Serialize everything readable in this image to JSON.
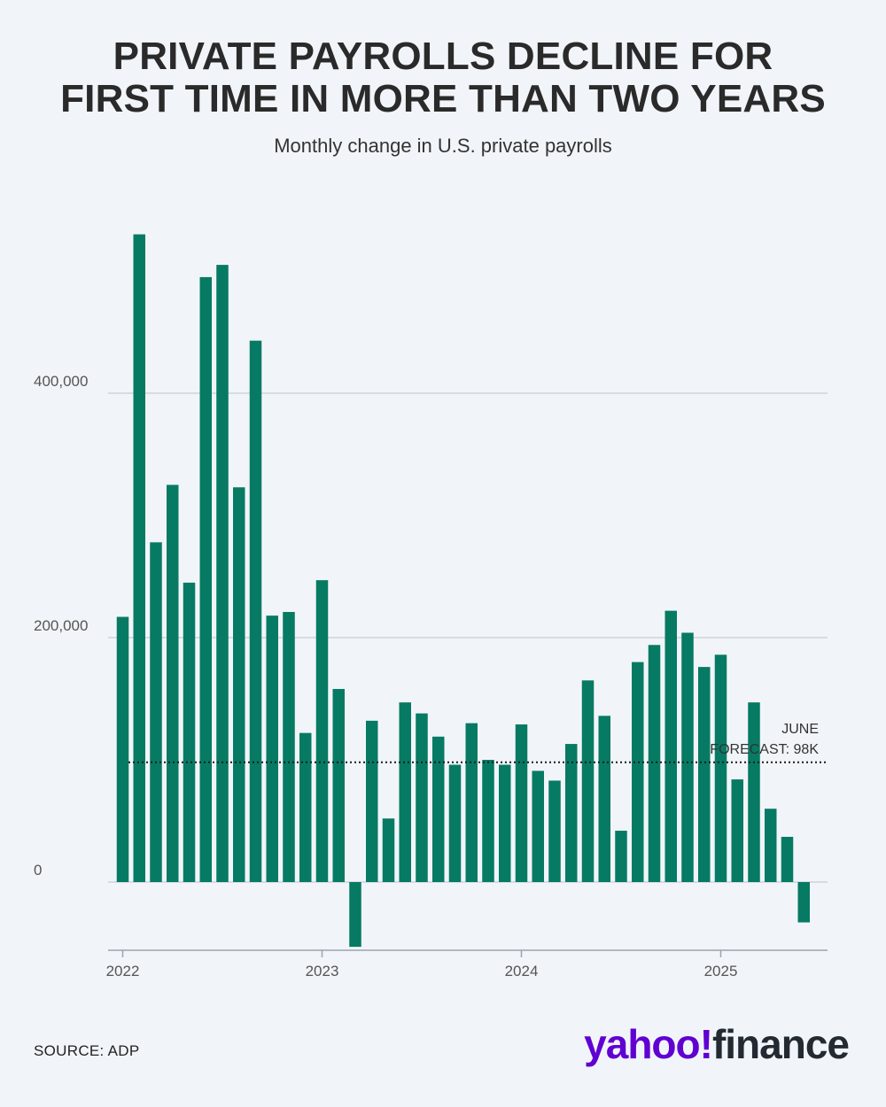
{
  "title_line1": "PRIVATE PAYROLLS DECLINE FOR",
  "title_line2": "FIRST TIME IN MORE THAN TWO YEARS",
  "subtitle": "Monthly change in U.S. private payrolls",
  "source": "SOURCE: ADP",
  "logo": {
    "part1": "yahoo!",
    "part2": "finance"
  },
  "colors": {
    "bar": "#077a63",
    "gridline": "#cdd3da",
    "background": "#f1f5f9",
    "logo_purple": "#6001d2"
  },
  "chart_data": {
    "type": "bar",
    "title": "PRIVATE PAYROLLS DECLINE FOR FIRST TIME IN MORE THAN TWO YEARS",
    "subtitle": "Monthly change in U.S. private payrolls",
    "xlabel": "",
    "ylabel": "",
    "categories": [
      "2022-01",
      "2022-02",
      "2022-03",
      "2022-04",
      "2022-05",
      "2022-06",
      "2022-07",
      "2022-08",
      "2022-09",
      "2022-10",
      "2022-11",
      "2022-12",
      "2023-01",
      "2023-02",
      "2023-03",
      "2023-04",
      "2023-05",
      "2023-06",
      "2023-07",
      "2023-08",
      "2023-09",
      "2023-10",
      "2023-11",
      "2023-12",
      "2024-01",
      "2024-02",
      "2024-03",
      "2024-04",
      "2024-05",
      "2024-06",
      "2024-07",
      "2024-08",
      "2024-09",
      "2024-10",
      "2024-11",
      "2024-12",
      "2025-01",
      "2025-02",
      "2025-03",
      "2025-04",
      "2025-05",
      "2025-06"
    ],
    "values": [
      217000,
      530000,
      278000,
      325000,
      245000,
      495000,
      505000,
      323000,
      443000,
      218000,
      221000,
      122000,
      247000,
      158000,
      -53000,
      132000,
      52000,
      147000,
      138000,
      119000,
      96000,
      130000,
      100000,
      96000,
      129000,
      91000,
      83000,
      113000,
      165000,
      136000,
      42000,
      180000,
      194000,
      222000,
      204000,
      176000,
      186000,
      84000,
      147000,
      60000,
      37000,
      -33000
    ],
    "ylim": [
      -53000,
      530000
    ],
    "y_ticks": [
      0,
      200000,
      400000
    ],
    "y_tick_labels": [
      "0",
      "200,000",
      "400,000"
    ],
    "x_tick_labels": [
      "2022",
      "2023",
      "2024",
      "2025"
    ],
    "reference_line": {
      "value": 98000,
      "label_line1": "JUNE",
      "label_line2": "FORECAST: 98K",
      "style": "dotted"
    },
    "grid": true,
    "legend": "none"
  }
}
